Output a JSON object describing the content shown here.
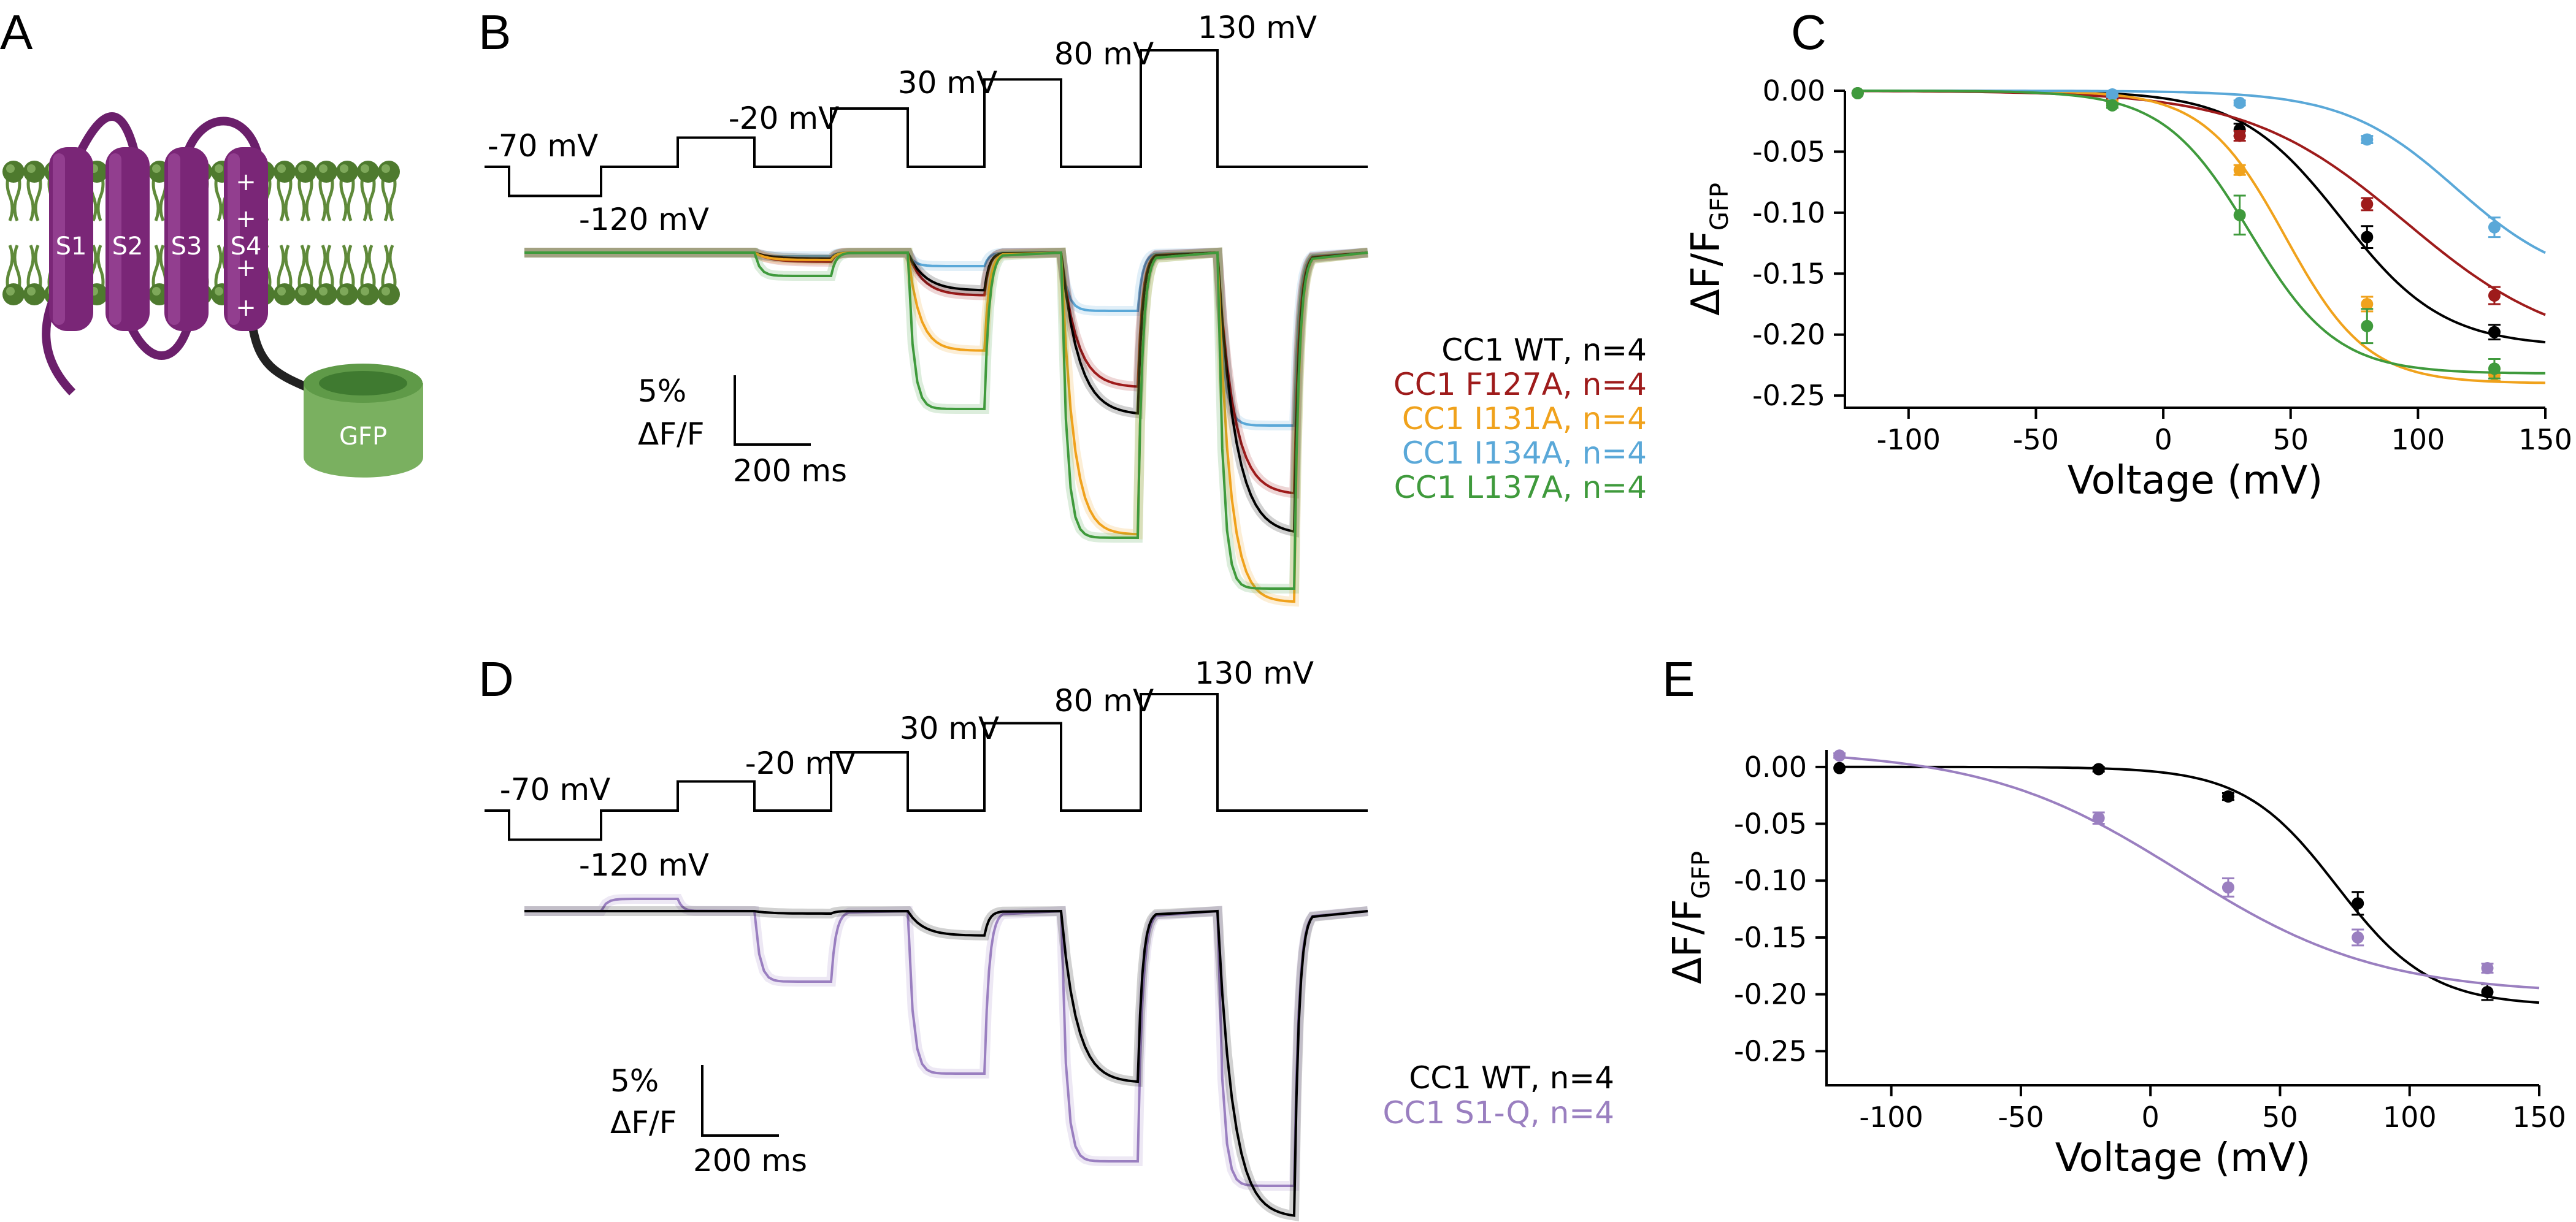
{
  "panels": {
    "A": {
      "label": "A",
      "helices": [
        "S1",
        "S2",
        "S3",
        "S4"
      ],
      "tag": "GFP",
      "charges": [
        "+",
        "+",
        "+",
        "+"
      ]
    },
    "B": {
      "label": "B"
    },
    "C": {
      "label": "C"
    },
    "D": {
      "label": "D"
    },
    "E": {
      "label": "E"
    }
  },
  "voltage_steps": [
    "-70 mV",
    "-120 mV",
    "-20 mV",
    "30 mV",
    "80 mV",
    "130 mV"
  ],
  "scalebar": {
    "amplitude": "5%",
    "unit": "ΔF/F",
    "time": "200 ms"
  },
  "legend_B": [
    {
      "text": "CC1 WT, n=4",
      "color": "#000000"
    },
    {
      "text": "CC1 F127A, n=4",
      "color": "#9e1b1b"
    },
    {
      "text": "CC1 I131A, n=4",
      "color": "#f0a21c"
    },
    {
      "text": "CC1 I134A, n=4",
      "color": "#5aa8d8"
    },
    {
      "text": "CC1 L137A, n=4",
      "color": "#3f9a3c"
    }
  ],
  "legend_D": [
    {
      "text": "CC1 WT, n=4",
      "color": "#000000"
    },
    {
      "text": "CC1 S1-Q, n=4",
      "color": "#9a7fc0"
    }
  ],
  "chart_data": [
    {
      "id": "C",
      "type": "scatter",
      "xlabel": "Voltage (mV)",
      "ylabel_main": "ΔF/F",
      "ylabel_sub": "GFP",
      "xlim": [
        -125,
        150
      ],
      "ylim": [
        -0.26,
        0.0
      ],
      "xticks": [
        "-100",
        "-50",
        "0",
        "50",
        "100",
        "150"
      ],
      "yticks": [
        "0.00",
        "-0.05",
        "-0.10",
        "-0.15",
        "-0.20",
        "-0.25"
      ],
      "x": [
        -120,
        -20,
        30,
        80,
        130
      ],
      "series": [
        {
          "color": "#000000",
          "values": [
            -0.002,
            -0.005,
            -0.032,
            -0.12,
            -0.198
          ],
          "err": [
            0,
            0.002,
            0.005,
            0.009,
            0.006
          ],
          "fit": {
            "a": -0.21,
            "v": 70,
            "k": 20
          }
        },
        {
          "color": "#9e1b1b",
          "values": [
            -0.002,
            -0.005,
            -0.037,
            -0.093,
            -0.168
          ],
          "err": [
            0,
            0.002,
            0.004,
            0.005,
            0.007
          ],
          "fit": {
            "a": -0.215,
            "v": 95,
            "k": 31
          }
        },
        {
          "color": "#f0a21c",
          "values": [
            -0.002,
            -0.01,
            -0.065,
            -0.175,
            -0.233
          ],
          "err": [
            0,
            0.002,
            0.004,
            0.006,
            0.005
          ],
          "fit": {
            "a": -0.24,
            "v": 48,
            "k": 16
          }
        },
        {
          "color": "#5aa8d8",
          "values": [
            -0.002,
            -0.003,
            -0.01,
            -0.04,
            -0.112
          ],
          "err": [
            0,
            0.002,
            0.002,
            0.003,
            0.008
          ],
          "fit": {
            "a": -0.16,
            "v": 115,
            "k": 22
          }
        },
        {
          "color": "#3f9a3c",
          "values": [
            -0.002,
            -0.012,
            -0.102,
            -0.193,
            -0.228
          ],
          "err": [
            0,
            0.002,
            0.016,
            0.014,
            0.008
          ],
          "fit": {
            "a": -0.232,
            "v": 34,
            "k": 17
          }
        }
      ]
    },
    {
      "id": "E",
      "type": "scatter",
      "xlabel": "Voltage (mV)",
      "ylabel_main": "ΔF/F",
      "ylabel_sub": "GFP",
      "xlim": [
        -125,
        150
      ],
      "ylim": [
        -0.28,
        0.015
      ],
      "xticks": [
        "-100",
        "-50",
        "0",
        "50",
        "100",
        "150"
      ],
      "yticks": [
        "0.00",
        "-0.05",
        "-0.10",
        "-0.15",
        "-0.20",
        "-0.25"
      ],
      "x": [
        -120,
        -20,
        30,
        80,
        130
      ],
      "series": [
        {
          "color": "#000000",
          "values": [
            -0.001,
            -0.002,
            -0.026,
            -0.12,
            -0.198
          ],
          "err": [
            0,
            0.002,
            0.003,
            0.01,
            0.007
          ],
          "fit": {
            "a": -0.21,
            "v": 72,
            "k": 18
          }
        },
        {
          "color": "#9a7fc0",
          "values": [
            0.01,
            -0.045,
            -0.106,
            -0.15,
            -0.177
          ],
          "err": [
            0.002,
            0.005,
            0.008,
            0.007,
            0.004
          ],
          "fit": {
            "a": -0.2,
            "v": 12,
            "k": 38,
            "offset": 0.015
          }
        }
      ]
    }
  ]
}
